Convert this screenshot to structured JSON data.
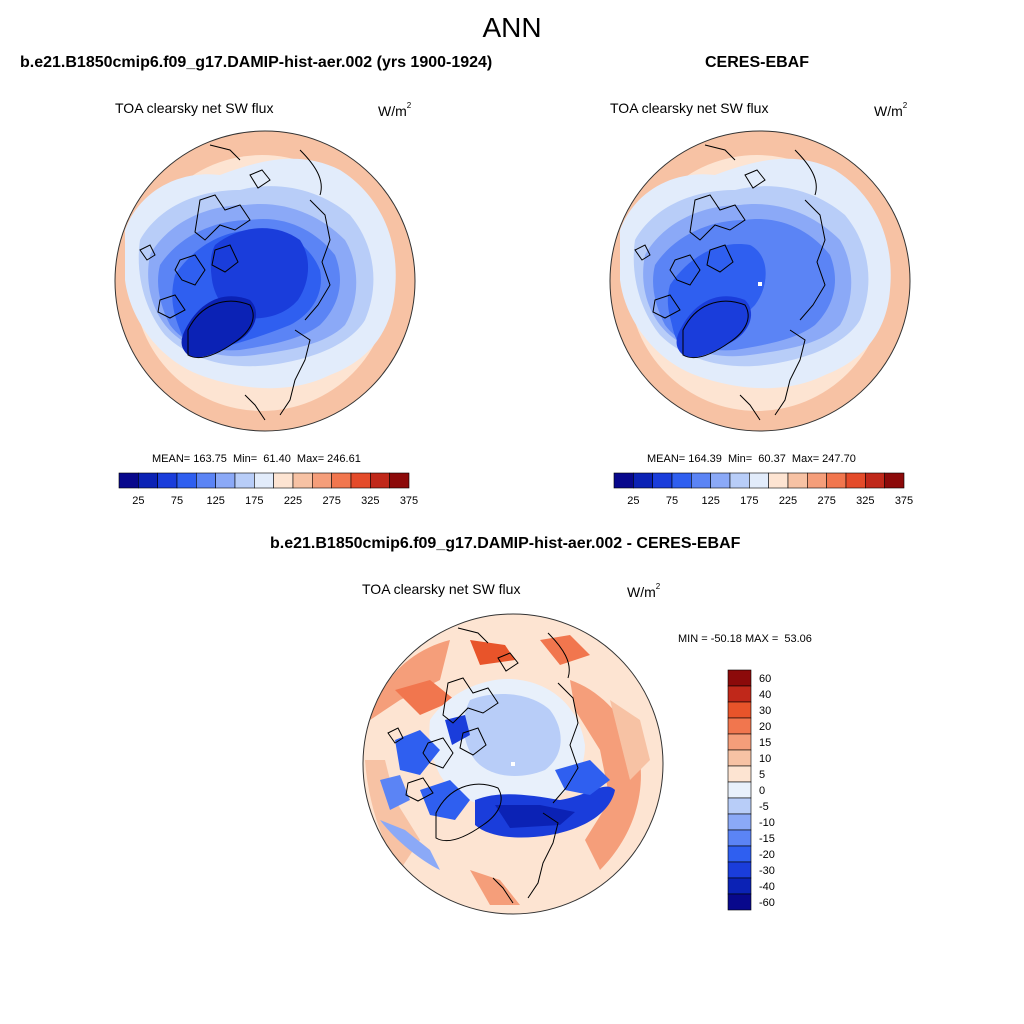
{
  "figure_title": "ANN",
  "panels": [
    {
      "title": "b.e21.B1850cmip6.f09_g17.DAMIP-hist-aer.002 (yrs 1900-1924)",
      "variable": "TOA clearsky net SW flux",
      "units": "W/m",
      "units_sup": "2",
      "stats": "MEAN= 163.75  Min=  61.40  Max= 246.61"
    },
    {
      "title": "CERES-EBAF",
      "variable": "TOA clearsky net SW flux",
      "units": "W/m",
      "units_sup": "2",
      "stats": "MEAN= 164.39  Min=  60.37  Max= 247.70"
    },
    {
      "title": "b.e21.B1850cmip6.f09_g17.DAMIP-hist-aer.002 - CERES-EBAF",
      "variable": "TOA clearsky net SW flux",
      "units": "W/m",
      "units_sup": "2",
      "stats": "MIN = -50.18 MAX =  53.06"
    }
  ],
  "colorbar_abs": {
    "colors": [
      "#08088c",
      "#0b22b5",
      "#1a3ddb",
      "#2f5ff0",
      "#5b84f5",
      "#8ba9f7",
      "#b8cdf8",
      "#e2ecfb",
      "#fde4d2",
      "#f7c2a4",
      "#f59e7a",
      "#f1764e",
      "#e44b2a",
      "#c0281a",
      "#8c0a0a"
    ],
    "labels": [
      "25",
      "75",
      "125",
      "175",
      "225",
      "275",
      "325",
      "375"
    ]
  },
  "colorbar_diff": {
    "colors": [
      "#08088c",
      "#0b22b5",
      "#1a3ddb",
      "#2f5ff0",
      "#5b84f5",
      "#8ba9f7",
      "#b8cdf8",
      "#e8f0fb",
      "#fde4d2",
      "#f7c2a4",
      "#f59e7a",
      "#f1764e",
      "#e8542a",
      "#c0281a",
      "#8c0a0a"
    ],
    "labels": [
      "60",
      "40",
      "30",
      "20",
      "15",
      "10",
      "5",
      "0",
      "-5",
      "-10",
      "-15",
      "-20",
      "-30",
      "-40",
      "-60"
    ]
  }
}
